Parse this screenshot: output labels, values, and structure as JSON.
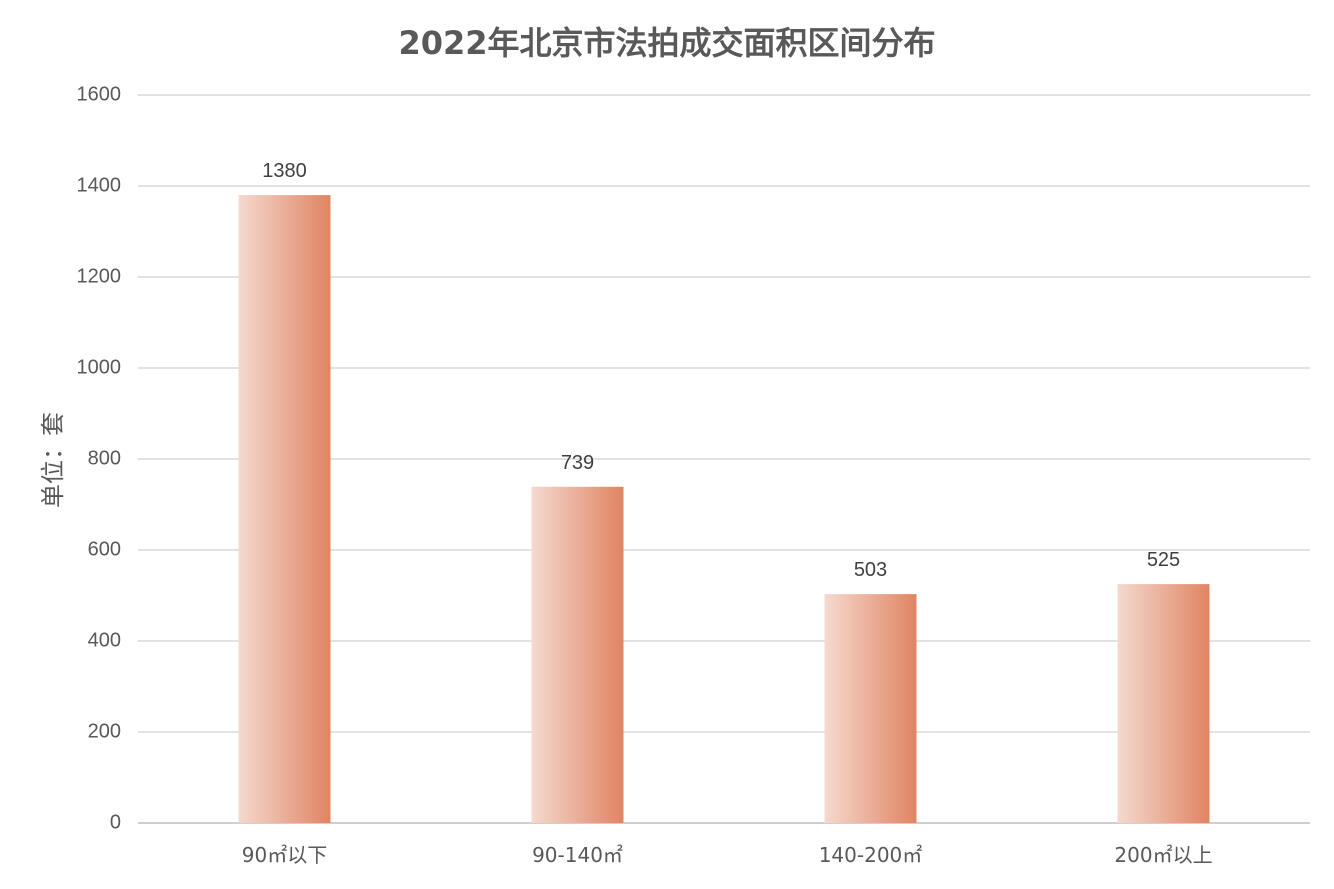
{
  "chart_data": {
    "type": "bar",
    "title": "2022年北京市法拍成交面积区间分布",
    "xlabel": "",
    "ylabel": "单位：套",
    "categories": [
      "90㎡以下",
      "90-140㎡",
      "140-200㎡",
      "200㎡以上"
    ],
    "values": [
      1380,
      739,
      503,
      525
    ],
    "ylim": [
      0,
      1600
    ],
    "yticks": [
      0,
      200,
      400,
      600,
      800,
      1000,
      1200,
      1400,
      1600
    ],
    "grid": true,
    "legend": "none",
    "colors": {
      "bar_light": "#f5d9cf",
      "bar_dark": "#e08462",
      "grid": "#d9d9d9",
      "text": "#595959"
    }
  }
}
